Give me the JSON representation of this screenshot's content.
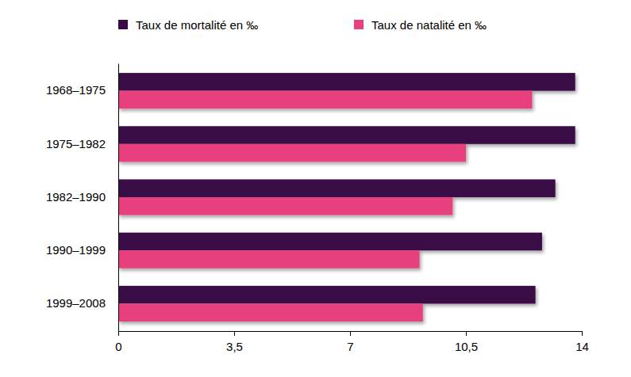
{
  "chart_data": {
    "type": "bar",
    "orientation": "horizontal",
    "categories": [
      "1968–1975",
      "1975–1982",
      "1982–1990",
      "1990–1999",
      "1999–2008"
    ],
    "series": [
      {
        "name": "Taux de mortalité en ‰",
        "color": "#3a0a47",
        "values": [
          13.8,
          13.8,
          13.2,
          12.8,
          12.6
        ]
      },
      {
        "name": "Taux de natalité en ‰",
        "color": "#e8407e",
        "values": [
          12.5,
          10.5,
          10.1,
          9.1,
          9.2
        ]
      }
    ],
    "xlim": [
      0,
      14
    ],
    "xticks": [
      0,
      {
        "value": 3.5,
        "label": "3,5"
      },
      7,
      {
        "value": 10.5,
        "label": "10,5"
      },
      14
    ],
    "grid": false,
    "legend": "top-left"
  }
}
